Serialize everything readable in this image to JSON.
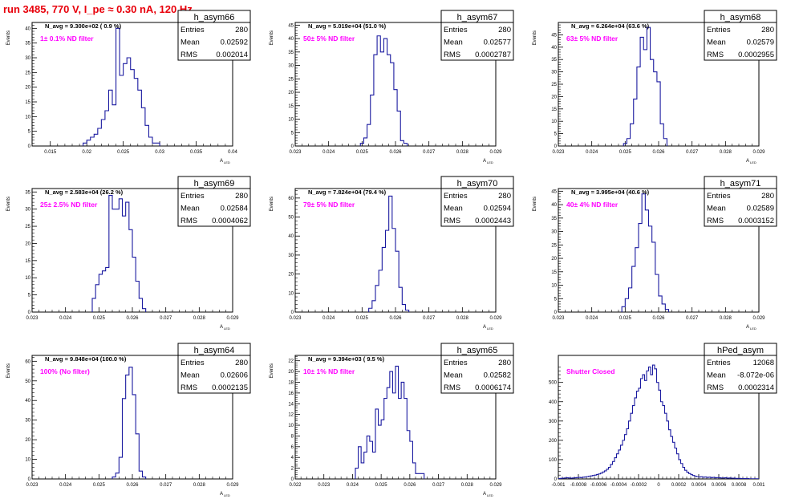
{
  "header": {
    "run_title": "run 3485,   770 V, I_pe ≈ 0.30 nA, 120 Hz"
  },
  "colors": {
    "hist_line": "#1a1aa0",
    "annotation": "#ff00ff",
    "title": "#e8000b"
  },
  "stat_labels": {
    "entries": "Entries",
    "mean": "Mean",
    "rms": "RMS"
  },
  "chart_data": [
    {
      "type": "histogram",
      "name": "h_asym66",
      "entries": "280",
      "mean": "0.02592",
      "rms": "0.002014",
      "navg_text": "N_avg = 9.300e+02 ( 0.9 %)",
      "filter_text": "1± 0.1% ND filter",
      "ylabel": "Events",
      "xlabel": "A",
      "xlabel_sub": "LED",
      "xlim": [
        0.0125,
        0.04
      ],
      "ylim": [
        0,
        42
      ],
      "xticks": [
        0.015,
        0.02,
        0.025,
        0.03,
        0.035,
        0.04
      ],
      "xtick_labels": [
        "0.015",
        "0.02",
        "0.025",
        "0.03",
        "0.035",
        "0.04"
      ],
      "yticks": [
        0,
        5,
        10,
        15,
        20,
        25,
        30,
        35,
        40
      ],
      "ytick_labels": [
        "0",
        "5",
        "10",
        "15",
        "20",
        "25",
        "30",
        "35",
        "40"
      ],
      "bins_start": 0.0195,
      "bin_width": 0.0005,
      "values": [
        1,
        2,
        3,
        4,
        6,
        9,
        12,
        19,
        14,
        40,
        24,
        28,
        30,
        26,
        23,
        19,
        13,
        7,
        3,
        1,
        1
      ]
    },
    {
      "type": "histogram",
      "name": "h_asym67",
      "entries": "280",
      "mean": "0.02577",
      "rms": "0.0002787",
      "navg_text": "N_avg = 5.019e+04 (51.0 %)",
      "filter_text": "50± 5% ND filter",
      "ylabel": "Events",
      "xlabel": "A",
      "xlabel_sub": "LED",
      "xlim": [
        0.023,
        0.029
      ],
      "ylim": [
        0,
        46
      ],
      "xticks": [
        0.023,
        0.024,
        0.025,
        0.026,
        0.027,
        0.028,
        0.029
      ],
      "xtick_labels": [
        "0.023",
        "0.024",
        "0.025",
        "0.026",
        "0.027",
        "0.028",
        "0.029"
      ],
      "yticks": [
        0,
        5,
        10,
        15,
        20,
        25,
        30,
        35,
        40,
        45
      ],
      "ytick_labels": [
        "0",
        "5",
        "10",
        "15",
        "20",
        "25",
        "30",
        "35",
        "40",
        "45"
      ],
      "bins_start": 0.02495,
      "bin_width": 0.0001,
      "values": [
        1,
        3,
        8,
        19,
        34,
        41,
        35,
        40,
        34,
        31,
        21,
        13,
        2,
        1
      ]
    },
    {
      "type": "histogram",
      "name": "h_asym68",
      "entries": "280",
      "mean": "0.02579",
      "rms": "0.0002955",
      "navg_text": "N_avg = 6.264e+04 (63.6 %)",
      "filter_text": "63± 5% ND filter",
      "ylabel": "Events",
      "xlabel": "A",
      "xlabel_sub": "LED",
      "xlim": [
        0.023,
        0.029
      ],
      "ylim": [
        0,
        50
      ],
      "xticks": [
        0.023,
        0.024,
        0.025,
        0.026,
        0.027,
        0.028,
        0.029
      ],
      "xtick_labels": [
        "0.023",
        "0.024",
        "0.025",
        "0.026",
        "0.027",
        "0.028",
        "0.029"
      ],
      "yticks": [
        0,
        5,
        10,
        15,
        20,
        25,
        30,
        35,
        40,
        45
      ],
      "ytick_labels": [
        "0",
        "5",
        "10",
        "15",
        "20",
        "25",
        "30",
        "35",
        "40",
        "45"
      ],
      "bins_start": 0.02495,
      "bin_width": 0.0001,
      "values": [
        1,
        3,
        9,
        19,
        32,
        44,
        39,
        48,
        35,
        30,
        26,
        9,
        3
      ]
    },
    {
      "type": "histogram",
      "name": "h_asym69",
      "entries": "280",
      "mean": "0.02584",
      "rms": "0.0004062",
      "navg_text": "N_avg = 2.583e+04 (26.2 %)",
      "filter_text": "25± 2.5% ND filter",
      "ylabel": "Events",
      "xlabel": "A",
      "xlabel_sub": "LED",
      "xlim": [
        0.023,
        0.029
      ],
      "ylim": [
        0,
        36
      ],
      "xticks": [
        0.023,
        0.024,
        0.025,
        0.026,
        0.027,
        0.028,
        0.029
      ],
      "xtick_labels": [
        "0.023",
        "0.024",
        "0.025",
        "0.026",
        "0.027",
        "0.028",
        "0.029"
      ],
      "yticks": [
        0,
        5,
        10,
        15,
        20,
        25,
        30,
        35
      ],
      "ytick_labels": [
        "0",
        "5",
        "10",
        "15",
        "20",
        "25",
        "30",
        "35"
      ],
      "bins_start": 0.0248,
      "bin_width": 0.0001,
      "values": [
        4,
        8,
        11,
        12,
        13,
        34,
        30,
        30,
        33,
        28,
        32,
        24,
        16,
        9,
        4,
        1
      ]
    },
    {
      "type": "histogram",
      "name": "h_asym70",
      "entries": "280",
      "mean": "0.02594",
      "rms": "0.0002443",
      "navg_text": "N_avg = 7.824e+04 (79.4 %)",
      "filter_text": "79± 5% ND filter",
      "ylabel": "Events",
      "xlabel": "A",
      "xlabel_sub": "LED",
      "xlim": [
        0.023,
        0.029
      ],
      "ylim": [
        0,
        65
      ],
      "xticks": [
        0.023,
        0.024,
        0.025,
        0.026,
        0.027,
        0.028,
        0.029
      ],
      "xtick_labels": [
        "0.023",
        "0.024",
        "0.025",
        "0.026",
        "0.027",
        "0.028",
        "0.029"
      ],
      "yticks": [
        0,
        10,
        20,
        30,
        40,
        50,
        60
      ],
      "ytick_labels": [
        "0",
        "10",
        "20",
        "30",
        "40",
        "50",
        "60"
      ],
      "bins_start": 0.0252,
      "bin_width": 0.0001,
      "values": [
        2,
        6,
        14,
        22,
        34,
        43,
        61,
        44,
        32,
        13,
        4,
        1
      ]
    },
    {
      "type": "histogram",
      "name": "h_asym71",
      "entries": "280",
      "mean": "0.02589",
      "rms": "0.0003152",
      "navg_text": "N_avg = 3.995e+04 (40.6 %)",
      "filter_text": "40± 4% ND filter",
      "ylabel": "Events",
      "xlabel": "A",
      "xlabel_sub": "LED",
      "xlim": [
        0.023,
        0.029
      ],
      "ylim": [
        0,
        46
      ],
      "xticks": [
        0.023,
        0.024,
        0.025,
        0.026,
        0.027,
        0.028,
        0.029
      ],
      "xtick_labels": [
        "0.023",
        "0.024",
        "0.025",
        "0.026",
        "0.027",
        "0.028",
        "0.029"
      ],
      "yticks": [
        0,
        5,
        10,
        15,
        20,
        25,
        30,
        35,
        40,
        45
      ],
      "ytick_labels": [
        "0",
        "5",
        "10",
        "15",
        "20",
        "25",
        "30",
        "35",
        "40",
        "45"
      ],
      "bins_start": 0.0249,
      "bin_width": 0.0001,
      "values": [
        2,
        5,
        9,
        17,
        24,
        33,
        44,
        38,
        32,
        26,
        14,
        6,
        3,
        1
      ]
    },
    {
      "type": "histogram",
      "name": "h_asym64",
      "entries": "280",
      "mean": "0.02606",
      "rms": "0.0002135",
      "navg_text": "N_avg = 9.848e+04 (100.0 %)",
      "filter_text": "100% (No filter)",
      "ylabel": "Events",
      "xlabel": "A",
      "xlabel_sub": "LED",
      "xlim": [
        0.023,
        0.029
      ],
      "ylim": [
        0,
        63
      ],
      "xticks": [
        0.023,
        0.024,
        0.025,
        0.026,
        0.027,
        0.028,
        0.029
      ],
      "xtick_labels": [
        "0.023",
        "0.024",
        "0.025",
        "0.026",
        "0.027",
        "0.028",
        "0.029"
      ],
      "yticks": [
        0,
        10,
        20,
        30,
        40,
        50,
        60
      ],
      "ytick_labels": [
        "0",
        "10",
        "20",
        "30",
        "40",
        "50",
        "60"
      ],
      "bins_start": 0.0254,
      "bin_width": 0.0001,
      "values": [
        1,
        3,
        11,
        41,
        53,
        57,
        43,
        23,
        4,
        1
      ]
    },
    {
      "type": "histogram",
      "name": "h_asym65",
      "entries": "280",
      "mean": "0.02582",
      "rms": "0.0006174",
      "navg_text": "N_avg = 9.394e+03 ( 9.5 %)",
      "filter_text": "10± 1% ND filter",
      "ylabel": "Events",
      "xlabel": "A",
      "xlabel_sub": "LED",
      "xlim": [
        0.022,
        0.029
      ],
      "ylim": [
        0,
        23
      ],
      "xticks": [
        0.022,
        0.023,
        0.024,
        0.025,
        0.026,
        0.027,
        0.028,
        0.029
      ],
      "xtick_labels": [
        "0.022",
        "0.023",
        "0.024",
        "0.025",
        "0.026",
        "0.027",
        "0.028",
        "0.029"
      ],
      "yticks": [
        0,
        2,
        4,
        6,
        8,
        10,
        12,
        14,
        16,
        18,
        20,
        22
      ],
      "ytick_labels": [
        "0",
        "2",
        "4",
        "6",
        "8",
        "10",
        "12",
        "14",
        "16",
        "18",
        "20",
        "22"
      ],
      "bins_start": 0.0241,
      "bin_width": 0.0001,
      "values": [
        2,
        6,
        3,
        5,
        8,
        7,
        5,
        13,
        10,
        11,
        15,
        17,
        20,
        16,
        21,
        15,
        18,
        15,
        9,
        7,
        3,
        1,
        1,
        1
      ]
    },
    {
      "type": "histogram",
      "name": "hPed_asym",
      "entries": "12068",
      "mean": "-8.072e-06",
      "rms": "0.0002314",
      "navg_text": "",
      "filter_text": "Shutter Closed",
      "ylabel": "",
      "xlabel": "",
      "xlabel_sub": "",
      "xlim": [
        -0.001,
        0.001
      ],
      "ylim": [
        0,
        640
      ],
      "xticks": [
        -0.001,
        -0.0008,
        -0.0006,
        -0.0004,
        -0.0002,
        0,
        0.0002,
        0.0004,
        0.0006,
        0.0008,
        0.001
      ],
      "xtick_labels": [
        "-0.001",
        "-0.0008",
        "-0.0006",
        "-0.0004",
        "-0.0002",
        "0",
        "0.0002",
        "0.0004",
        "0.0006",
        "0.0008",
        "0.001"
      ],
      "yticks": [
        0,
        100,
        200,
        300,
        400,
        500
      ],
      "ytick_labels": [
        "0",
        "100",
        "200",
        "300",
        "400",
        "500"
      ],
      "bins_start": -0.001,
      "bin_width": 2e-05,
      "values": [
        2,
        3,
        4,
        5,
        6,
        5,
        4,
        5,
        6,
        7,
        8,
        7,
        9,
        10,
        12,
        14,
        16,
        18,
        20,
        23,
        26,
        30,
        36,
        42,
        50,
        60,
        75,
        90,
        110,
        130,
        150,
        175,
        200,
        230,
        260,
        300,
        340,
        380,
        420,
        455,
        470,
        520,
        540,
        510,
        560,
        580,
        540,
        590,
        570,
        500,
        460,
        400,
        380,
        340,
        300,
        255,
        220,
        190,
        160,
        130,
        100,
        80,
        60,
        45,
        35,
        28,
        22,
        18,
        14,
        12,
        10,
        11,
        9,
        10,
        8,
        9,
        7,
        8,
        6,
        7,
        6,
        5,
        5,
        6,
        4,
        5,
        4,
        4,
        3,
        3,
        3,
        2,
        2,
        2,
        2,
        1,
        1,
        1,
        1,
        1
      ]
    }
  ]
}
